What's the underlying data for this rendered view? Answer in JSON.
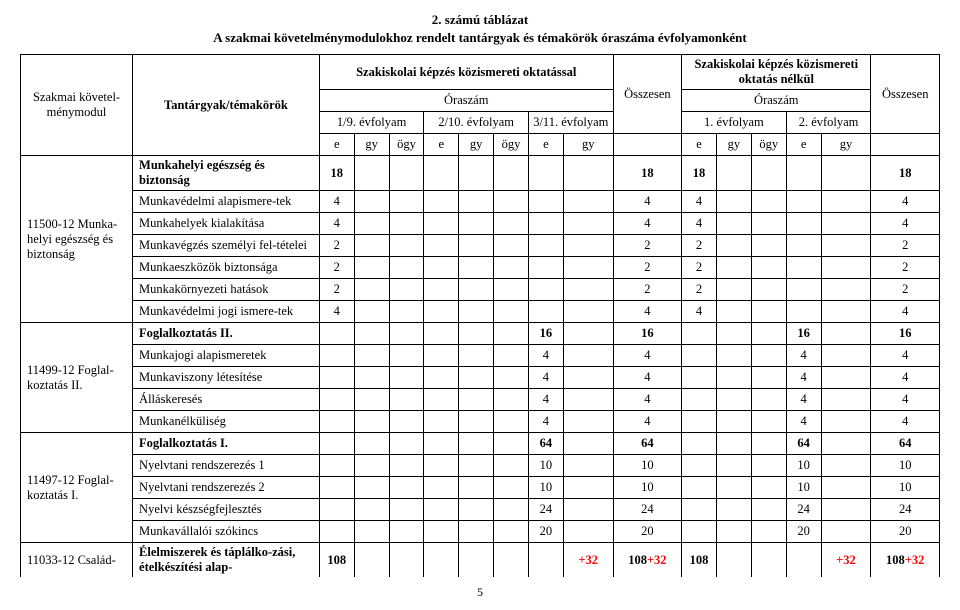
{
  "title_line1": "2.  számú táblázat",
  "title_line2": "A szakmai követelménymodulokhoz rendelt tantárgyak és témakörök óraszáma évfolyamonként",
  "header": {
    "modul": "Szakmai követel-ménymodul",
    "tantargyak": "Tantárgyak/témakörök",
    "group1": "Szakiskolai képzés közismereti oktatással",
    "group2": "Szakiskolai képzés közismereti oktatás nélkül",
    "oraszam": "Óraszám",
    "yf19": "1/9. évfolyam",
    "yf210": "2/10. évfolyam",
    "yf311": "3/11. évfolyam",
    "yf1": "1. évfolyam",
    "yf2": "2. évfolyam",
    "ossz": "Összesen",
    "e": "e",
    "gy": "gy",
    "ogy": "ögy"
  },
  "modules": {
    "m1": "11500-12 Munka-helyi egészség és biztonság",
    "m2": "11499-12 Foglal-koztatás II.",
    "m3": "11497-12 Foglal-koztatás I.",
    "m4": "11033-12 Család-"
  },
  "rows": [
    {
      "n": "Munkahelyi egészség és biztonság",
      "b": true,
      "v": {
        "c0": "18",
        "tot1": "18",
        "g0": "18",
        "tot2": "18"
      }
    },
    {
      "n": "Munkavédelmi alapismere-tek",
      "v": {
        "c0": "4",
        "tot1": "4",
        "g0": "4",
        "tot2": "4"
      }
    },
    {
      "n": "Munkahelyek kialakítása",
      "v": {
        "c0": "4",
        "tot1": "4",
        "g0": "4",
        "tot2": "4"
      }
    },
    {
      "n": "Munkavégzés személyi fel-tételei",
      "v": {
        "c0": "2",
        "tot1": "2",
        "g0": "2",
        "tot2": "2"
      }
    },
    {
      "n": "Munkaeszközök biztonsága",
      "v": {
        "c0": "2",
        "tot1": "2",
        "g0": "2",
        "tot2": "2"
      }
    },
    {
      "n": "Munkakörnyezeti hatások",
      "v": {
        "c0": "2",
        "tot1": "2",
        "g0": "2",
        "tot2": "2"
      }
    },
    {
      "n": "Munkavédelmi jogi ismere-tek",
      "v": {
        "c0": "4",
        "tot1": "4",
        "g0": "4",
        "tot2": "4"
      }
    },
    {
      "n": "Foglalkoztatás II.",
      "b": true,
      "v": {
        "c6": "16",
        "tot1": "16",
        "g3": "16",
        "tot2": "16"
      }
    },
    {
      "n": "Munkajogi alapismeretek",
      "v": {
        "c6": "4",
        "tot1": "4",
        "g3": "4",
        "tot2": "4"
      }
    },
    {
      "n": "Munkaviszony létesítése",
      "v": {
        "c6": "4",
        "tot1": "4",
        "g3": "4",
        "tot2": "4"
      }
    },
    {
      "n": "Álláskeresés",
      "v": {
        "c6": "4",
        "tot1": "4",
        "g3": "4",
        "tot2": "4"
      }
    },
    {
      "n": "Munkanélküliség",
      "v": {
        "c6": "4",
        "tot1": "4",
        "g3": "4",
        "tot2": "4"
      }
    },
    {
      "n": "Foglalkoztatás I.",
      "b": true,
      "v": {
        "c6": "64",
        "tot1": "64",
        "g3": "64",
        "tot2": "64"
      }
    },
    {
      "n": "Nyelvtani rendszerezés 1",
      "v": {
        "c6": "10",
        "tot1": "10",
        "g3": "10",
        "tot2": "10"
      }
    },
    {
      "n": "Nyelvtani rendszerezés 2",
      "v": {
        "c6": "10",
        "tot1": "10",
        "g3": "10",
        "tot2": "10"
      }
    },
    {
      "n": "Nyelvi készségfejlesztés",
      "v": {
        "c6": "24",
        "tot1": "24",
        "g3": "24",
        "tot2": "24"
      }
    },
    {
      "n": "Munkavállalói szókincs",
      "v": {
        "c6": "20",
        "tot1": "20",
        "g3": "20",
        "tot2": "20"
      }
    },
    {
      "n": "Élelmiszerek és táplálko-zási, ételkészítési alap-",
      "b": true,
      "v": {
        "c0": "108",
        "c7r": "+32",
        "tot1": "108",
        "tot1r": "+32",
        "g0": "108",
        "g4r": "+32",
        "tot2": "108",
        "tot2r": "+32"
      }
    }
  ],
  "pagenum": "5"
}
